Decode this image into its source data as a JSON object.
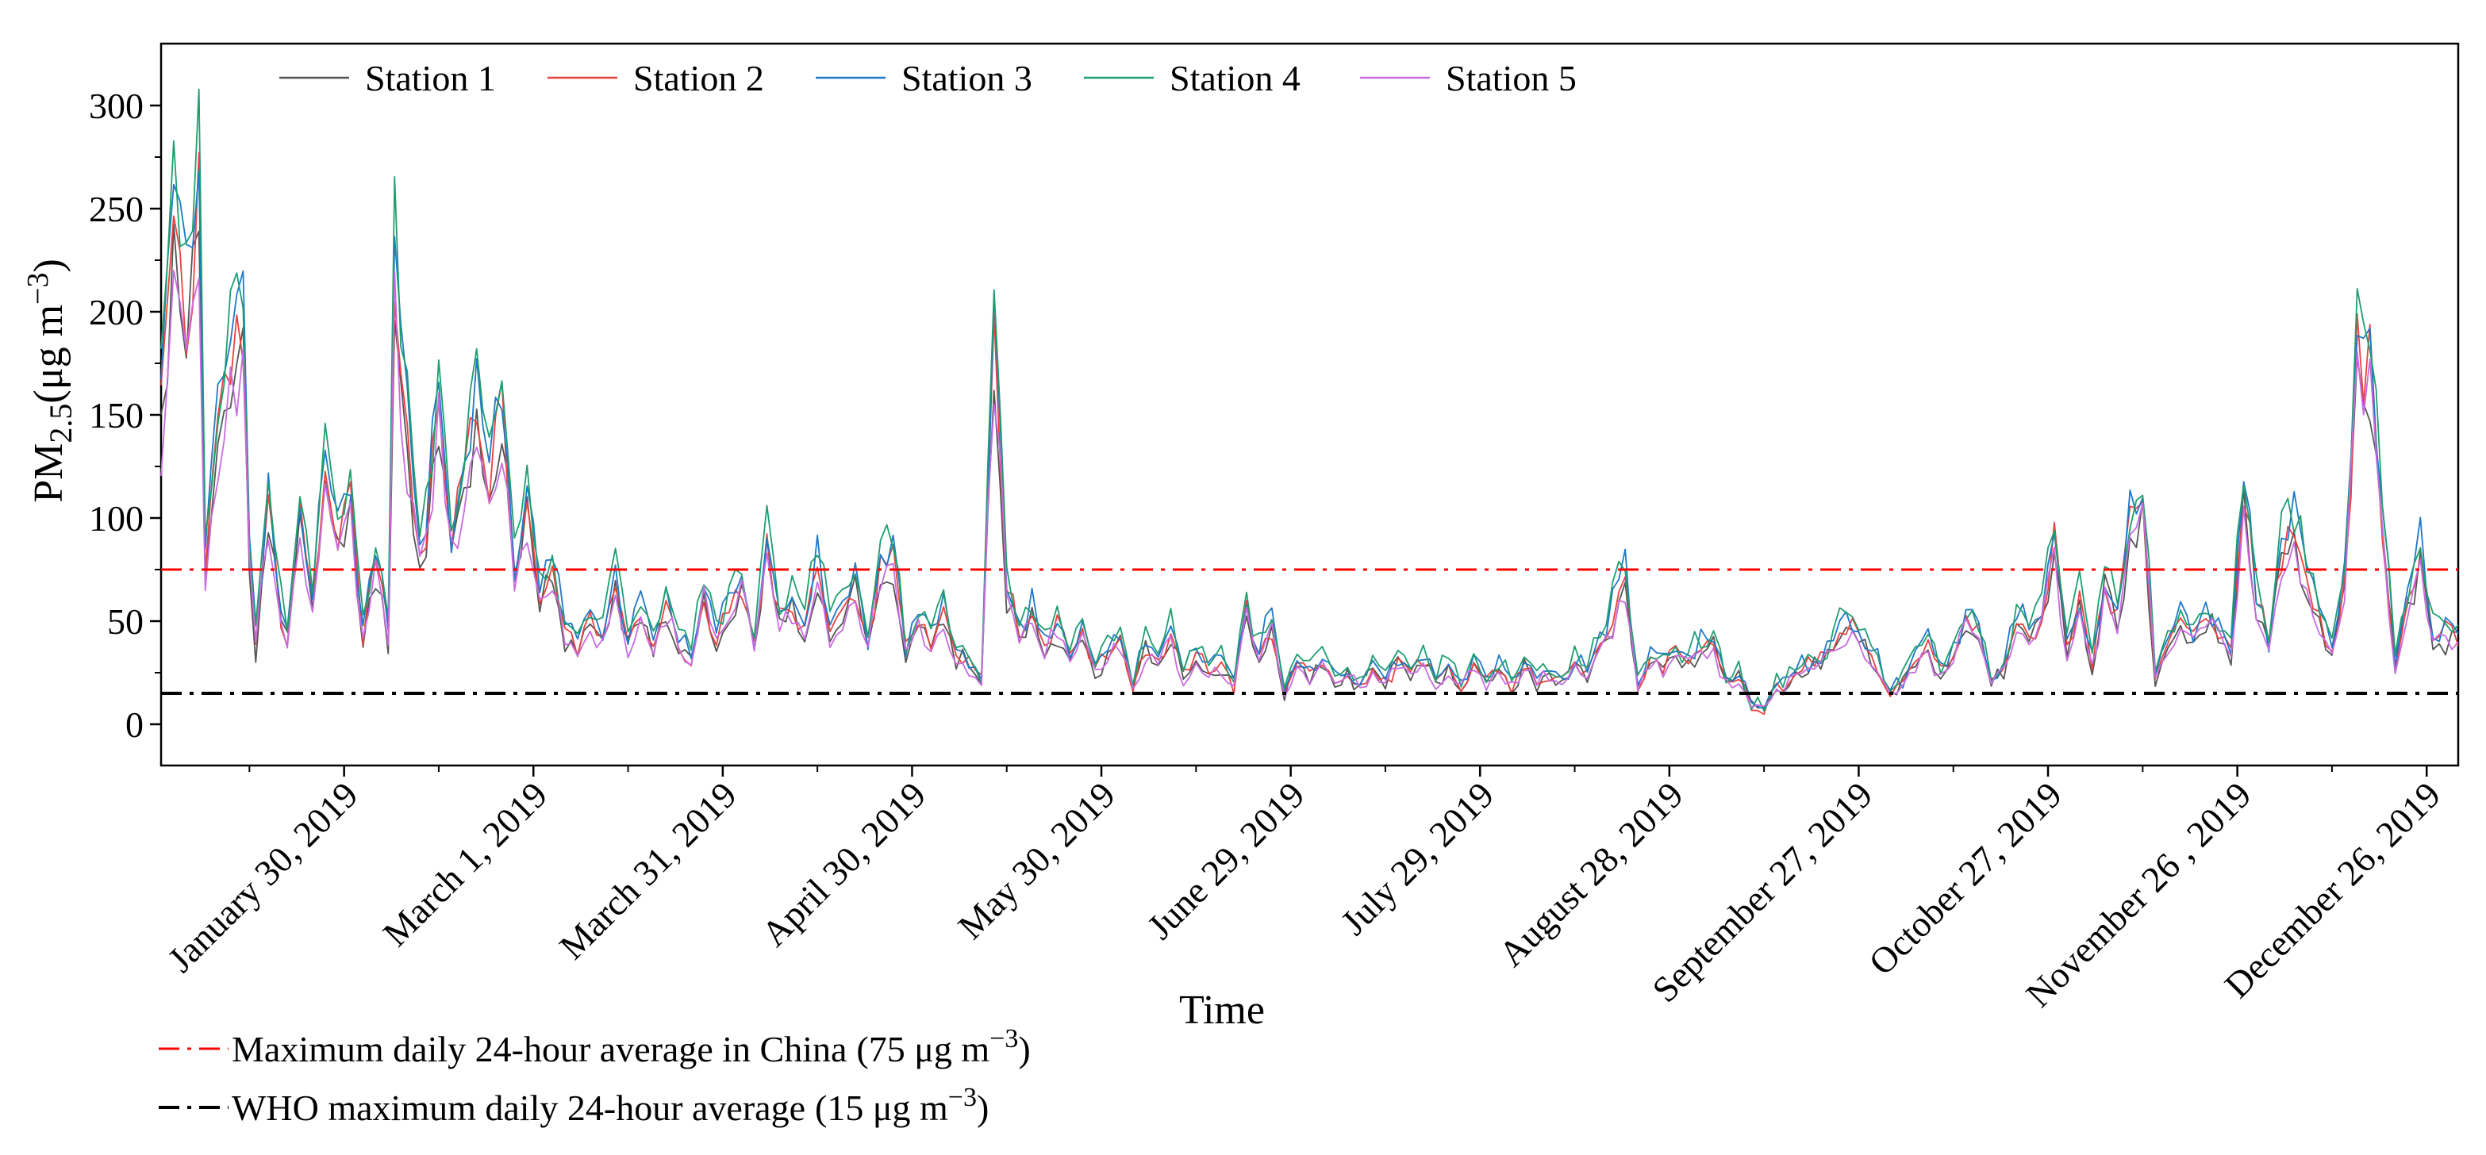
{
  "chart_data": {
    "type": "line",
    "title": "",
    "xlabel": "Time",
    "ylabel_main": "PM",
    "ylabel_sub": "2.5",
    "ylabel_unit_open": "(μg m",
    "ylabel_unit_sup": "−3",
    "ylabel_unit_close": ")",
    "ylim": [
      -20,
      330
    ],
    "yticks": [
      0,
      50,
      100,
      150,
      200,
      250,
      300
    ],
    "ytick_labels": [
      "0",
      "50",
      "100",
      "150",
      "200",
      "250",
      "300"
    ],
    "x_start": "2019-01-01",
    "x_end": "2019-12-31",
    "x_ticks": [
      {
        "day": 29,
        "label": "January 30, 2019"
      },
      {
        "day": 59,
        "label": "March 1, 2019"
      },
      {
        "day": 89,
        "label": "March 31, 2019"
      },
      {
        "day": 119,
        "label": "April 30, 2019"
      },
      {
        "day": 149,
        "label": "May 30, 2019"
      },
      {
        "day": 179,
        "label": "June 29, 2019"
      },
      {
        "day": 209,
        "label": "July 29, 2019"
      },
      {
        "day": 239,
        "label": "August 28, 2019"
      },
      {
        "day": 269,
        "label": "September 27, 2019"
      },
      {
        "day": 299,
        "label": "October 27, 2019"
      },
      {
        "day": 329,
        "label": "November 26 , 2019"
      },
      {
        "day": 359,
        "label": "December 26, 2019"
      }
    ],
    "legend_position": "top-left",
    "reference_lines": [
      {
        "name": "china",
        "value": 75,
        "color": "#ff0000",
        "label_text": "Maximum daily 24-hour average in China",
        "label_value": "(75 μg m",
        "label_sup": "−3",
        "label_close": ")"
      },
      {
        "name": "who",
        "value": 15,
        "color": "#000000",
        "label_text": "WHO maximum daily 24-hour average",
        "label_value": "(15 μg m",
        "label_sup": "−3",
        "label_close": ")"
      }
    ],
    "base_profile": [
      [
        0,
        150
      ],
      [
        2,
        250
      ],
      [
        4,
        200
      ],
      [
        6,
        260
      ],
      [
        7,
        80
      ],
      [
        9,
        140
      ],
      [
        11,
        175
      ],
      [
        13,
        200
      ],
      [
        14,
        80
      ],
      [
        15,
        40
      ],
      [
        17,
        110
      ],
      [
        19,
        55
      ],
      [
        20,
        45
      ],
      [
        22,
        100
      ],
      [
        24,
        60
      ],
      [
        26,
        130
      ],
      [
        28,
        90
      ],
      [
        30,
        110
      ],
      [
        32,
        45
      ],
      [
        34,
        80
      ],
      [
        36,
        45
      ],
      [
        37,
        220
      ],
      [
        39,
        140
      ],
      [
        41,
        80
      ],
      [
        42,
        95
      ],
      [
        44,
        160
      ],
      [
        46,
        90
      ],
      [
        48,
        120
      ],
      [
        50,
        160
      ],
      [
        52,
        120
      ],
      [
        54,
        160
      ],
      [
        56,
        75
      ],
      [
        58,
        110
      ],
      [
        60,
        60
      ],
      [
        62,
        80
      ],
      [
        64,
        45
      ],
      [
        66,
        40
      ],
      [
        68,
        50
      ],
      [
        70,
        45
      ],
      [
        72,
        70
      ],
      [
        74,
        40
      ],
      [
        76,
        55
      ],
      [
        78,
        40
      ],
      [
        80,
        60
      ],
      [
        82,
        40
      ],
      [
        84,
        35
      ],
      [
        86,
        65
      ],
      [
        88,
        45
      ],
      [
        90,
        55
      ],
      [
        92,
        70
      ],
      [
        94,
        40
      ],
      [
        96,
        90
      ],
      [
        98,
        50
      ],
      [
        100,
        60
      ],
      [
        102,
        45
      ],
      [
        104,
        80
      ],
      [
        106,
        45
      ],
      [
        108,
        55
      ],
      [
        110,
        70
      ],
      [
        112,
        40
      ],
      [
        114,
        75
      ],
      [
        116,
        85
      ],
      [
        118,
        35
      ],
      [
        120,
        50
      ],
      [
        122,
        40
      ],
      [
        124,
        55
      ],
      [
        126,
        35
      ],
      [
        128,
        30
      ],
      [
        130,
        22
      ],
      [
        132,
        190
      ],
      [
        134,
        70
      ],
      [
        136,
        45
      ],
      [
        138,
        55
      ],
      [
        140,
        40
      ],
      [
        142,
        50
      ],
      [
        144,
        35
      ],
      [
        146,
        45
      ],
      [
        148,
        25
      ],
      [
        150,
        35
      ],
      [
        152,
        45
      ],
      [
        154,
        20
      ],
      [
        156,
        40
      ],
      [
        158,
        30
      ],
      [
        160,
        45
      ],
      [
        162,
        25
      ],
      [
        164,
        35
      ],
      [
        166,
        25
      ],
      [
        168,
        30
      ],
      [
        170,
        20
      ],
      [
        172,
        55
      ],
      [
        174,
        35
      ],
      [
        176,
        50
      ],
      [
        178,
        15
      ],
      [
        180,
        30
      ],
      [
        182,
        25
      ],
      [
        184,
        30
      ],
      [
        186,
        20
      ],
      [
        188,
        25
      ],
      [
        190,
        18
      ],
      [
        192,
        28
      ],
      [
        194,
        22
      ],
      [
        196,
        30
      ],
      [
        198,
        25
      ],
      [
        200,
        30
      ],
      [
        202,
        22
      ],
      [
        204,
        28
      ],
      [
        206,
        18
      ],
      [
        208,
        30
      ],
      [
        210,
        22
      ],
      [
        212,
        28
      ],
      [
        214,
        20
      ],
      [
        216,
        30
      ],
      [
        218,
        22
      ],
      [
        220,
        25
      ],
      [
        222,
        20
      ],
      [
        224,
        30
      ],
      [
        226,
        25
      ],
      [
        228,
        40
      ],
      [
        230,
        55
      ],
      [
        232,
        75
      ],
      [
        234,
        20
      ],
      [
        236,
        35
      ],
      [
        238,
        30
      ],
      [
        240,
        35
      ],
      [
        242,
        32
      ],
      [
        244,
        38
      ],
      [
        246,
        40
      ],
      [
        248,
        20
      ],
      [
        250,
        25
      ],
      [
        252,
        10
      ],
      [
        254,
        8
      ],
      [
        256,
        18
      ],
      [
        258,
        22
      ],
      [
        260,
        28
      ],
      [
        262,
        30
      ],
      [
        264,
        35
      ],
      [
        266,
        45
      ],
      [
        268,
        50
      ],
      [
        270,
        40
      ],
      [
        272,
        30
      ],
      [
        274,
        15
      ],
      [
        276,
        20
      ],
      [
        278,
        30
      ],
      [
        280,
        40
      ],
      [
        282,
        25
      ],
      [
        284,
        35
      ],
      [
        286,
        50
      ],
      [
        288,
        45
      ],
      [
        290,
        20
      ],
      [
        292,
        30
      ],
      [
        294,
        50
      ],
      [
        296,
        45
      ],
      [
        298,
        55
      ],
      [
        300,
        90
      ],
      [
        302,
        40
      ],
      [
        304,
        60
      ],
      [
        306,
        30
      ],
      [
        308,
        70
      ],
      [
        310,
        50
      ],
      [
        312,
        100
      ],
      [
        314,
        110
      ],
      [
        316,
        25
      ],
      [
        318,
        40
      ],
      [
        320,
        50
      ],
      [
        322,
        45
      ],
      [
        324,
        55
      ],
      [
        326,
        45
      ],
      [
        328,
        35
      ],
      [
        330,
        120
      ],
      [
        332,
        60
      ],
      [
        334,
        40
      ],
      [
        336,
        85
      ],
      [
        338,
        95
      ],
      [
        340,
        70
      ],
      [
        342,
        50
      ],
      [
        344,
        35
      ],
      [
        346,
        70
      ],
      [
        348,
        185
      ],
      [
        350,
        180
      ],
      [
        352,
        100
      ],
      [
        354,
        30
      ],
      [
        356,
        60
      ],
      [
        358,
        85
      ],
      [
        360,
        45
      ]
    ],
    "series": [
      {
        "name": "Station 1",
        "color": "#555555",
        "scale": 0.92,
        "seed": 11
      },
      {
        "name": "Station 2",
        "color": "#e8423f",
        "scale": 0.98,
        "seed": 23
      },
      {
        "name": "Station 3",
        "color": "#1f78c8",
        "scale": 1.06,
        "seed": 37
      },
      {
        "name": "Station 4",
        "color": "#1f9e6e",
        "scale": 1.1,
        "seed": 41
      },
      {
        "name": "Station 5",
        "color": "#c86be0",
        "scale": 0.9,
        "seed": 53
      }
    ]
  }
}
